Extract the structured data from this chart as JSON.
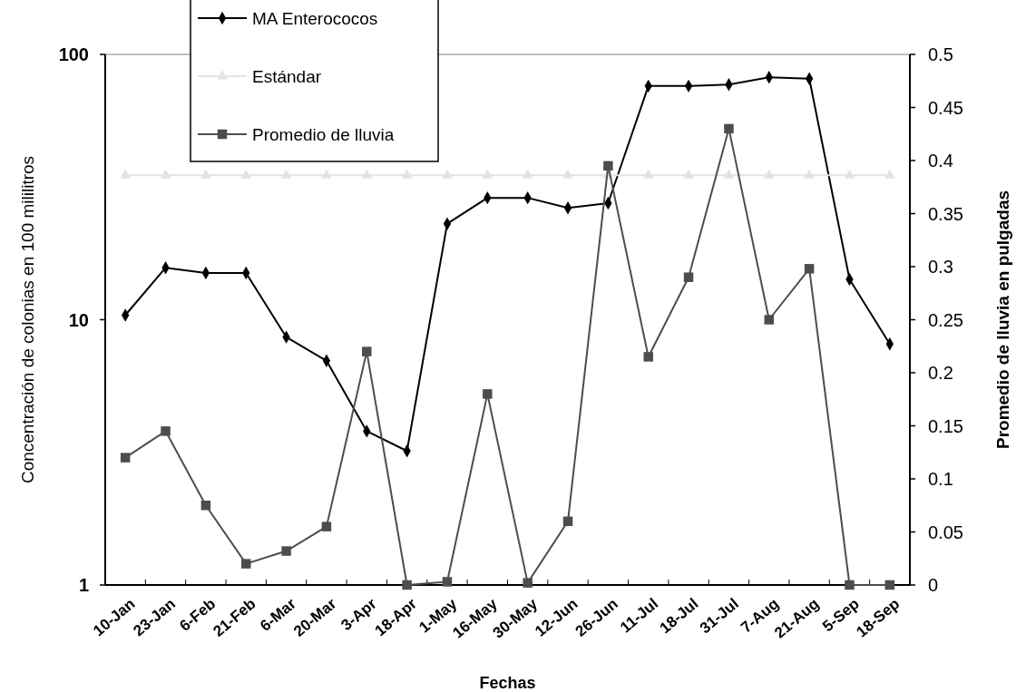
{
  "chart_data": {
    "type": "line",
    "xlabel": "Fechas",
    "ylabel": "Concentración de colonias en 100 mililitros",
    "y2label": "Promedio de lluvia en pulgadas",
    "categories": [
      "10-Jan",
      "23-Jan",
      "6-Feb",
      "21-Feb",
      "6-Mar",
      "20-Mar",
      "3-Apr",
      "18-Apr",
      "1-May",
      "16-May",
      "30-May",
      "12-Jun",
      "26-Jun",
      "11-Jul",
      "18-Jul",
      "31-Jul",
      "7-Aug",
      "21-Aug",
      "5-Sep",
      "18-Sep"
    ],
    "series": [
      {
        "name": "MA Enterococos",
        "color": "#000000",
        "marker": "diamond",
        "values": [
          10.4,
          15.7,
          15,
          15,
          8.6,
          7.0,
          3.8,
          3.2,
          23,
          28.8,
          28.8,
          26.4,
          27.5,
          76,
          76,
          77,
          82,
          81,
          14.2,
          8.1
        ]
      },
      {
        "name": "Estándar",
        "color": "#e3e3e3",
        "marker": "triangle",
        "values": [
          35,
          35,
          35,
          35,
          35,
          35,
          35,
          35,
          35,
          35,
          35,
          35,
          35,
          35,
          35,
          35,
          35,
          35,
          35,
          35
        ]
      },
      {
        "name": "Promedio de lluvia",
        "color": "#4d4d4d",
        "marker": "square",
        "axis": "y2",
        "values": [
          0.12,
          0.145,
          0.075,
          0.02,
          0.032,
          0.055,
          0.22,
          0,
          0.003,
          0.18,
          0.002,
          0.06,
          0.395,
          0.215,
          0.29,
          0.43,
          0.25,
          0.298,
          0,
          0
        ]
      }
    ],
    "log": "y",
    "ylim": [
      1,
      100
    ],
    "yticks": [
      1,
      10,
      100
    ],
    "y2lim": [
      0,
      0.5
    ],
    "y2ticks": [
      0,
      0.05,
      0.1,
      0.15,
      0.2,
      0.25,
      0.3,
      0.35,
      0.4,
      0.45,
      0.5
    ],
    "legend": "top",
    "grid": false
  }
}
